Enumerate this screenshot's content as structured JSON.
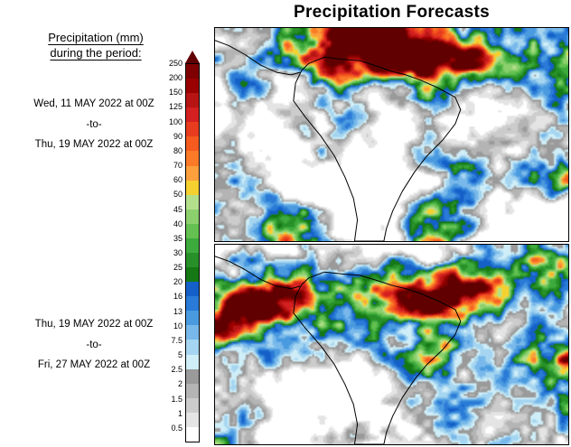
{
  "title": "Precipitation Forecasts",
  "legend": {
    "heading_line1": "Precipitation (mm)",
    "heading_line2": "during the period:",
    "levels": [
      "250",
      "200",
      "150",
      "125",
      "100",
      "90",
      "80",
      "70",
      "60",
      "50",
      "45",
      "40",
      "35",
      "30",
      "25",
      "20",
      "16",
      "13",
      "10",
      "7.5",
      "5",
      "2.5",
      "2",
      "1.5",
      "1",
      "0.5"
    ],
    "band_colors_top_to_bottom": [
      "#7f0000",
      "#9b0000",
      "#b71414",
      "#d42020",
      "#e83c1e",
      "#f55a1e",
      "#fa7a28",
      "#fba03c",
      "#f5d130",
      "#b4e08c",
      "#8cd06e",
      "#64c050",
      "#3caa3c",
      "#289028",
      "#147814",
      "#1460c8",
      "#2a7ad7",
      "#4a9ae0",
      "#78b8ea",
      "#a5d5f0",
      "#cfeef8",
      "#9a9a9a",
      "#b4b4b4",
      "#cccccc",
      "#e4e4e4",
      "#ffffff"
    ],
    "arrow_color": "#600000"
  },
  "panels": [
    {
      "start": "Wed, 11 MAY 2022 at 00Z",
      "separator": "-to-",
      "end": "Thu, 19 MAY 2022 at 00Z"
    },
    {
      "start": "Thu, 19 MAY 2022 at 00Z",
      "separator": "-to-",
      "end": "Fri, 27 MAY 2022 at 00Z"
    }
  ]
}
